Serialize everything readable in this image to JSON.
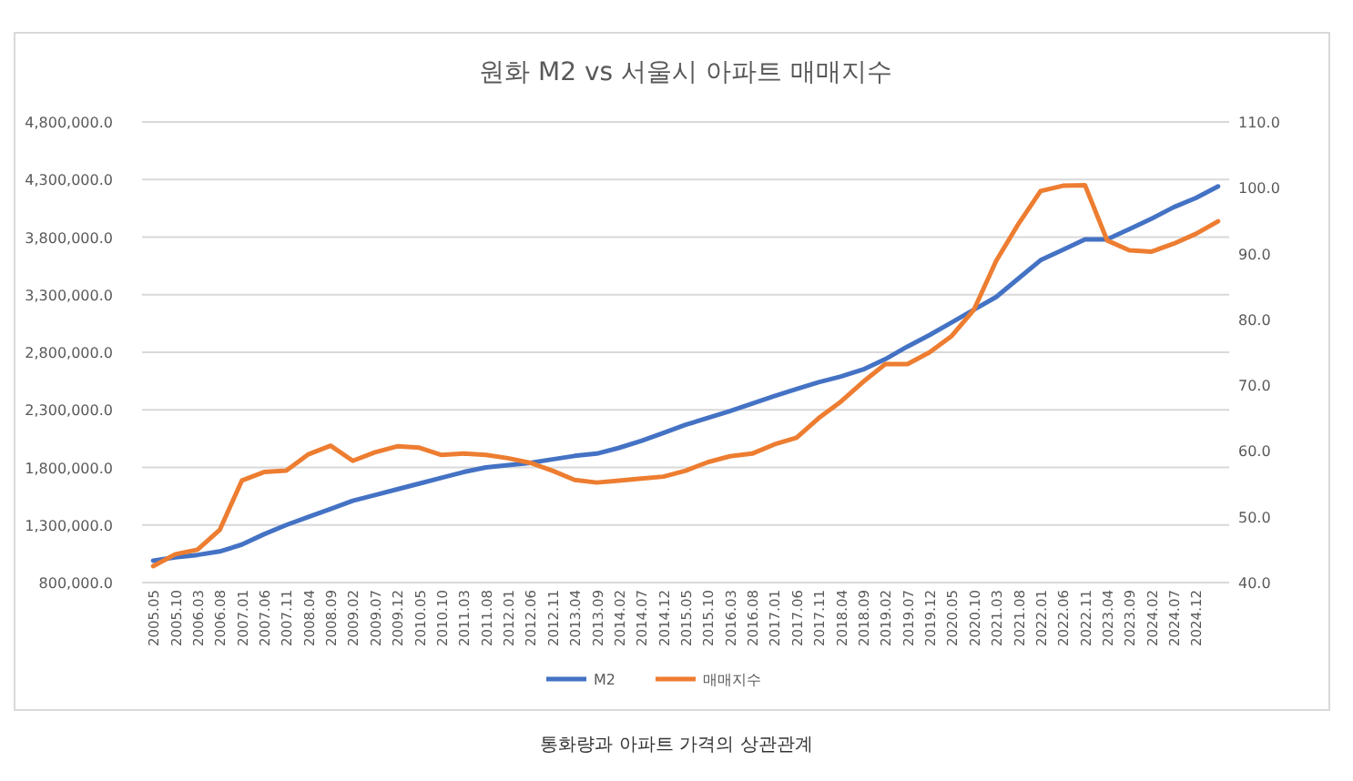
{
  "chart_data": {
    "type": "line",
    "title": "원화 M2 vs 서울시 아파트 매매지수",
    "categories": [
      "2005.05",
      "2005.10",
      "2006.03",
      "2006.08",
      "2007.01",
      "2007.06",
      "2007.11",
      "2008.04",
      "2008.09",
      "2009.02",
      "2009.07",
      "2009.12",
      "2010.05",
      "2010.10",
      "2011.03",
      "2011.08",
      "2012.01",
      "2012.06",
      "2012.11",
      "2013.04",
      "2013.09",
      "2014.02",
      "2014.07",
      "2014.12",
      "2015.05",
      "2015.10",
      "2016.03",
      "2016.08",
      "2017.01",
      "2017.06",
      "2017.11",
      "2018.04",
      "2018.09",
      "2019.02",
      "2019.07",
      "2019.12",
      "2020.05",
      "2020.10",
      "2021.03",
      "2021.08",
      "2022.01",
      "2022.06",
      "2022.11",
      "2023.04",
      "2023.09",
      "2024.02",
      "2024.07",
      "2024.12",
      null
    ],
    "series": [
      {
        "name": "M2",
        "color": "#4472c4",
        "values": [
          990000,
          1020000,
          1040000,
          1070000,
          1130000,
          1220000,
          1300000,
          1370000,
          1440000,
          1510000,
          1560000,
          1610000,
          1660000,
          1710000,
          1760000,
          1800000,
          1820000,
          1840000,
          1870000,
          1900000,
          1920000,
          1970000,
          2030000,
          2100000,
          2170000,
          2230000,
          2290000,
          2355000,
          2420000,
          2480000,
          2540000,
          2590000,
          2650000,
          2740000,
          2850000,
          2950000,
          3060000,
          3170000,
          3280000,
          3440000,
          3600000,
          3690000,
          3780000,
          3780000,
          3870000,
          3960000,
          4060000,
          4140000,
          4240000
        ]
      },
      {
        "name": "매매지수",
        "color": "#ed7d31",
        "axis": "y2",
        "values": [
          42.5,
          44.3,
          45,
          48,
          55.5,
          56.8,
          57,
          59.5,
          60.8,
          58.5,
          59.8,
          60.7,
          60.5,
          59.4,
          59.6,
          59.4,
          58.9,
          58.2,
          57,
          55.6,
          55.2,
          55.5,
          55.8,
          56.1,
          57,
          58.3,
          59.2,
          59.6,
          61,
          62,
          65,
          67.5,
          70.5,
          73.2,
          73.2,
          75,
          77.5,
          81.5,
          88.9,
          94.5,
          99.5,
          100.3,
          100.4,
          92,
          90.5,
          90.3,
          91.5,
          93,
          94.9
        ]
      }
    ],
    "ylim": [
      800000,
      4800000
    ],
    "yticks": [
      {
        "value": 800000,
        "label": "800,000.0"
      },
      {
        "value": 1300000,
        "label": "1,300,000.0"
      },
      {
        "value": 1800000,
        "label": "1,800,000.0"
      },
      {
        "value": 2300000,
        "label": "2,300,000.0"
      },
      {
        "value": 2800000,
        "label": "2,800,000.0"
      },
      {
        "value": 3300000,
        "label": "3,300,000.0"
      },
      {
        "value": 3800000,
        "label": "3,800,000.0"
      },
      {
        "value": 4300000,
        "label": "4,300,000.0"
      },
      {
        "value": 4800000,
        "label": "4,800,000.0"
      }
    ],
    "y2lim": [
      40,
      110
    ],
    "y2ticks": [
      {
        "value": 40,
        "label": "40.0"
      },
      {
        "value": 50,
        "label": "50.0"
      },
      {
        "value": 60,
        "label": "60.0"
      },
      {
        "value": 70,
        "label": "70.0"
      },
      {
        "value": 80,
        "label": "80.0"
      },
      {
        "value": 90,
        "label": "90.0"
      },
      {
        "value": 100,
        "label": "100.0"
      },
      {
        "value": 110,
        "label": "110.0"
      }
    ],
    "grid": "y",
    "legend": "bottom",
    "marker": "none",
    "line_style": "solid",
    "annotations": [
      "통화량과 아파트 가격의 상관관계"
    ]
  }
}
